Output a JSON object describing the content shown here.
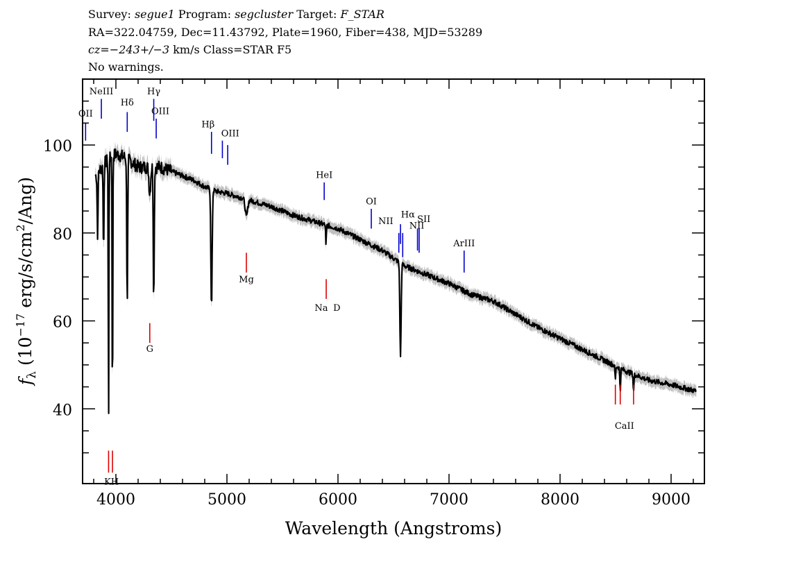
{
  "header": {
    "line1": {
      "survey_label": "Survey:",
      "survey": "segue1",
      "program_label": "Program:",
      "program": "segcluster",
      "target_label": "Target:",
      "target": "F_STAR"
    },
    "line2": "RA=322.04759, Dec=11.43792, Plate=1960, Fiber=438, MJD=53289",
    "line3": {
      "cz": "cz=−243+/−3",
      "rest": "km/s Class=STAR F5"
    },
    "line4": "No warnings."
  },
  "colors": {
    "flux": "#000000",
    "error_band": "#c0c0c0",
    "emission_lines": "#0000cc",
    "absorption_lines": "#dd0000",
    "frame": "#000000"
  },
  "chart_data": {
    "type": "line",
    "title": "",
    "xlabel": "Wavelength (Angstroms)",
    "ylabel_parts": {
      "f": "f",
      "sub": "λ",
      "pre": " (10",
      "exp1": "−17",
      "mid": " erg/s/cm",
      "exp2": "2",
      "post": "/Ang)"
    },
    "xlim": [
      3700,
      9300
    ],
    "ylim": [
      23,
      115
    ],
    "x_ticks": [
      4000,
      5000,
      6000,
      7000,
      8000,
      9000
    ],
    "x_tick_labels": [
      "4000",
      "5000",
      "6000",
      "7000",
      "8000",
      "9000"
    ],
    "y_ticks": [
      40,
      60,
      80,
      100
    ],
    "y_tick_labels": [
      "40",
      "60",
      "80",
      "100"
    ],
    "grid": false,
    "continuum": {
      "x": [
        3820,
        3900,
        4000,
        4100,
        4200,
        4300,
        4400,
        4500,
        4600,
        4700,
        4800,
        4900,
        5000,
        5200,
        5400,
        5600,
        5800,
        6000,
        6200,
        6400,
        6600,
        6800,
        7000,
        7200,
        7400,
        7600,
        7800,
        8000,
        8200,
        8400,
        8600,
        8800,
        9000,
        9230
      ],
      "y": [
        93,
        96,
        98,
        97,
        95,
        95,
        95,
        94,
        93,
        92,
        90.5,
        89.5,
        89,
        87.5,
        86,
        84,
        82.5,
        81,
        78.5,
        76,
        72.5,
        70.5,
        68.5,
        66,
        64.5,
        61.5,
        58.5,
        56,
        53.5,
        51,
        48.5,
        46.5,
        45.5,
        44
      ]
    },
    "absorption_features": [
      {
        "x": 3835,
        "depth": 15,
        "width": 5
      },
      {
        "x": 3889,
        "depth": 20,
        "width": 5
      },
      {
        "x": 3934,
        "depth": 62,
        "width": 4
      },
      {
        "x": 3969,
        "depth": 60,
        "width": 4
      },
      {
        "x": 4102,
        "depth": 32,
        "width": 6
      },
      {
        "x": 4305,
        "depth": 6,
        "width": 10
      },
      {
        "x": 4341,
        "depth": 30,
        "width": 6
      },
      {
        "x": 4861,
        "depth": 27,
        "width": 8
      },
      {
        "x": 5175,
        "depth": 4,
        "width": 15
      },
      {
        "x": 5892,
        "depth": 5,
        "width": 4
      },
      {
        "x": 6563,
        "depth": 21,
        "width": 8
      },
      {
        "x": 8498,
        "depth": 3,
        "width": 5
      },
      {
        "x": 8542,
        "depth": 5,
        "width": 5
      },
      {
        "x": 8662,
        "depth": 4,
        "width": 5
      }
    ],
    "emission_lines": [
      {
        "label": "OII",
        "x": 3727,
        "label_y": 106,
        "y_top": 105,
        "y_bot": 101
      },
      {
        "label": "NeIII",
        "x": 3869,
        "label_y": 111.5,
        "y_top": 110.5,
        "y_bot": 106
      },
      {
        "label": "Hδ",
        "x": 4102,
        "label_y": 109,
        "y_top": 107.5,
        "y_bot": 103
      },
      {
        "label": "Hγ",
        "x": 4341,
        "label_y": 111.5,
        "y_top": 110.5,
        "y_bot": 105.5
      },
      {
        "label": "OIII",
        "x": 4363,
        "label_y": 107,
        "y_top": 106,
        "y_bot": 101.5
      },
      {
        "label": "Hβ",
        "x": 4861,
        "label_y": 104,
        "y_top": 103,
        "y_bot": 98
      },
      {
        "label": "OIII",
        "x": 4959,
        "label_y": 102,
        "y_top": 101,
        "y_bot": 97
      },
      {
        "label": "OIII",
        "x": 5007,
        "label_y": 101,
        "y_top": 100,
        "y_bot": 95.5
      },
      {
        "label": "HeI",
        "x": 5876,
        "label_y": 92.5,
        "y_top": 91.5,
        "y_bot": 87.5
      },
      {
        "label": "OI",
        "x": 6300,
        "label_y": 86.5,
        "y_top": 85.5,
        "y_bot": 81
      },
      {
        "label": "NII",
        "x": 6548,
        "label_y": 81.5,
        "y_top": 80,
        "y_bot": 75.5
      },
      {
        "label": "Hα",
        "x": 6563,
        "label_y": 83.5,
        "y_top": 82,
        "y_bot": 77.5
      },
      {
        "label": "NII",
        "x": 6583,
        "label_y": 80.5,
        "y_top": 80,
        "y_bot": 74.5
      },
      {
        "label": "SII",
        "x": 6716,
        "label_y": 82,
        "y_top": 81,
        "y_bot": 76
      },
      {
        "label": "SII",
        "x": 6731,
        "label_y": 82,
        "y_top": 81,
        "y_bot": 75.5
      },
      {
        "label": "ArIII",
        "x": 7136,
        "label_y": 77,
        "y_top": 76,
        "y_bot": 71
      }
    ],
    "emission_label_positions": [
      {
        "text": "OII",
        "x": 3727,
        "y": 106.5
      },
      {
        "text": "NeIII",
        "x": 3869,
        "y": 111.5
      },
      {
        "text": "Hδ",
        "x": 4102,
        "y": 109
      },
      {
        "text": "Hγ",
        "x": 4341,
        "y": 111.5
      },
      {
        "text": "OIII",
        "x": 4400,
        "y": 107
      },
      {
        "text": "Hβ",
        "x": 4830,
        "y": 104
      },
      {
        "text": "OIII",
        "x": 5030,
        "y": 102
      },
      {
        "text": "HeI",
        "x": 5876,
        "y": 92.5
      },
      {
        "text": "OI",
        "x": 6300,
        "y": 86.5
      },
      {
        "text": "NII",
        "x": 6430,
        "y": 82
      },
      {
        "text": "Hα",
        "x": 6630,
        "y": 83.5
      },
      {
        "text": "SII",
        "x": 6773,
        "y": 82.5
      },
      {
        "text": "NII",
        "x": 6710,
        "y": 81
      },
      {
        "text": "ArIII",
        "x": 7136,
        "y": 77
      }
    ],
    "absorption_lines": [
      {
        "label": "K",
        "x": 3934,
        "y_top": 30.5,
        "y_bot": 25.5
      },
      {
        "label": "H",
        "x": 3969,
        "y_top": 30.5,
        "y_bot": 25.5
      },
      {
        "label": "G",
        "x": 4305,
        "y_top": 59.5,
        "y_bot": 55
      },
      {
        "label": "Mg",
        "x": 5175,
        "y_top": 75.5,
        "y_bot": 71
      },
      {
        "label": "Na",
        "x": 5894,
        "y_top": 69.5,
        "y_bot": 65
      },
      {
        "label": "CaII",
        "x": 8498,
        "y_top": 45.5,
        "y_bot": 41
      },
      {
        "label": "CaII",
        "x": 8542,
        "y_top": 45.5,
        "y_bot": 41
      },
      {
        "label": "CaII",
        "x": 8662,
        "y_top": 45.5,
        "y_bot": 41
      }
    ],
    "absorption_label_positions": [
      {
        "text": "K",
        "x": 3925,
        "y": 22.8
      },
      {
        "text": "H",
        "x": 3990,
        "y": 22.8
      },
      {
        "text": "G",
        "x": 4305,
        "y": 53
      },
      {
        "text": "Mg",
        "x": 5175,
        "y": 68.8
      },
      {
        "text": "Na",
        "x": 5850,
        "y": 62.3
      },
      {
        "text": "D",
        "x": 5990,
        "y": 62.3
      },
      {
        "text": "CaII",
        "x": 8580,
        "y": 35.5
      }
    ]
  }
}
